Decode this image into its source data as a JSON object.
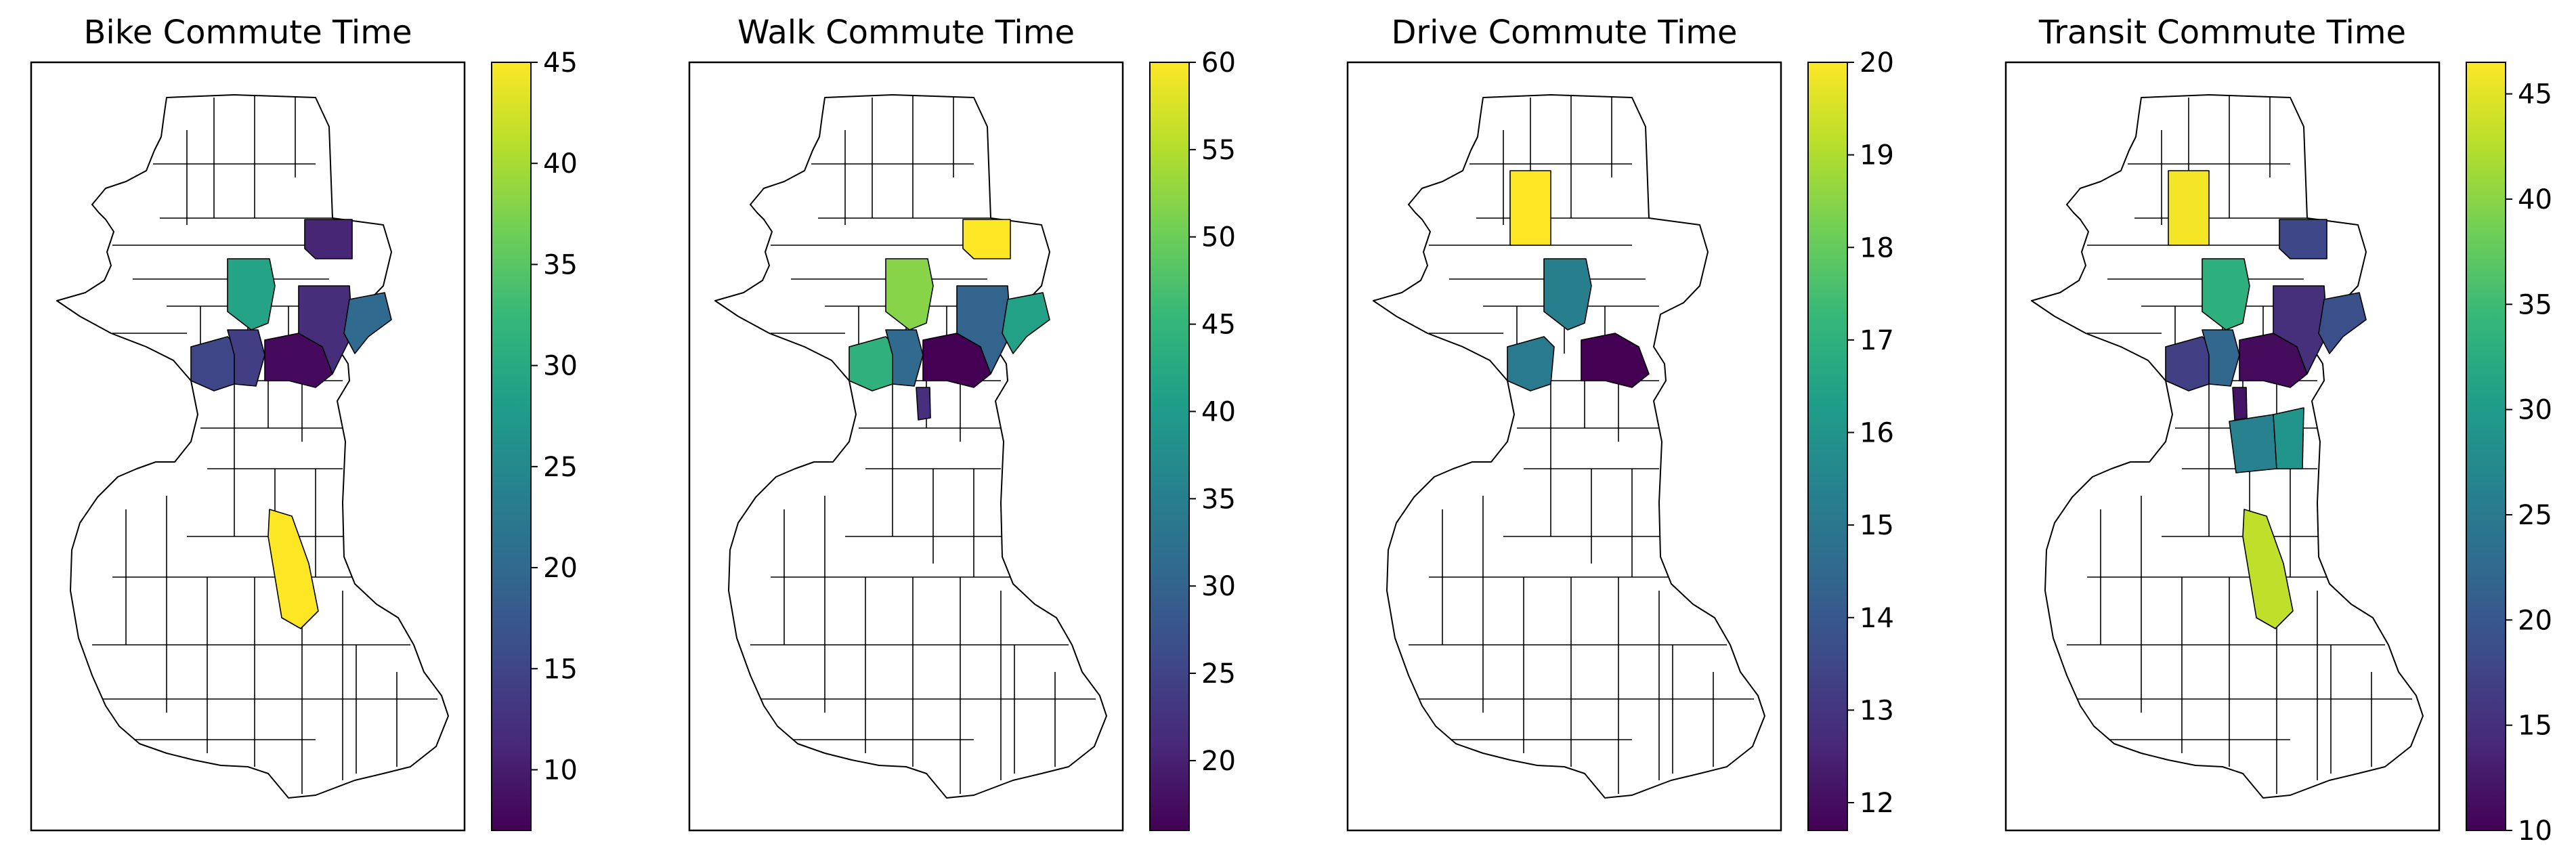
{
  "panels": [
    {
      "title": "Bike Commute Time",
      "colorbar": {
        "min": 7.0,
        "max": 45.0,
        "ticks": [
          "10",
          "15",
          "20",
          "25",
          "30",
          "35",
          "40",
          "45"
        ],
        "tick_values": [
          10,
          15,
          20,
          25,
          30,
          35,
          40,
          45
        ]
      }
    },
    {
      "title": "Walk Commute Time",
      "colorbar": {
        "min": 16.0,
        "max": 60.0,
        "ticks": [
          "20",
          "25",
          "30",
          "35",
          "40",
          "45",
          "50",
          "55",
          "60"
        ],
        "tick_values": [
          20,
          25,
          30,
          35,
          40,
          45,
          50,
          55,
          60
        ]
      }
    },
    {
      "title": "Drive Commute Time",
      "colorbar": {
        "min": 11.7,
        "max": 20.0,
        "ticks": [
          "12",
          "13",
          "14",
          "15",
          "16",
          "17",
          "18",
          "19",
          "20"
        ],
        "tick_values": [
          12,
          13,
          14,
          15,
          16,
          17,
          18,
          19,
          20
        ]
      }
    },
    {
      "title": "Transit Commute Time",
      "colorbar": {
        "min": 10.0,
        "max": 46.5,
        "ticks": [
          "10",
          "15",
          "20",
          "25",
          "30",
          "35",
          "40",
          "45"
        ],
        "tick_values": [
          10,
          15,
          20,
          25,
          30,
          35,
          40,
          45
        ]
      }
    }
  ],
  "chart_data": {
    "type": "choropleth",
    "colormap": "viridis",
    "colormap_stops": [
      "#440154",
      "#482878",
      "#3e4989",
      "#31688e",
      "#26828e",
      "#1f9e89",
      "#35b779",
      "#6ece58",
      "#b5de2b",
      "#fde725"
    ],
    "neighborhood_fill": "#ffffff",
    "maps": [
      {
        "title": "Bike Commute Time",
        "values": [
          {
            "id": "north-central",
            "value": 29
          },
          {
            "id": "northeast-top",
            "value": 11
          },
          {
            "id": "west-central",
            "value": 15
          },
          {
            "id": "central-left",
            "value": 14
          },
          {
            "id": "core",
            "value": 8
          },
          {
            "id": "east-center",
            "value": 12
          },
          {
            "id": "east",
            "value": 20
          },
          {
            "id": "south-central",
            "value": 45
          }
        ]
      },
      {
        "title": "Walk Commute Time",
        "values": [
          {
            "id": "north-central",
            "value": 52
          },
          {
            "id": "northeast-top",
            "value": 60
          },
          {
            "id": "west-central",
            "value": 44
          },
          {
            "id": "central-left",
            "value": 31
          },
          {
            "id": "core",
            "value": 16
          },
          {
            "id": "east-center",
            "value": 30
          },
          {
            "id": "east",
            "value": 41
          },
          {
            "id": "small-south",
            "value": 22
          }
        ]
      },
      {
        "title": "Drive Commute Time",
        "values": [
          {
            "id": "north-left",
            "value": 20
          },
          {
            "id": "north-central",
            "value": 15.3
          },
          {
            "id": "west-central",
            "value": 15.1
          },
          {
            "id": "core",
            "value": 11.7
          }
        ]
      },
      {
        "title": "Transit Commute Time",
        "values": [
          {
            "id": "north-left",
            "value": 46
          },
          {
            "id": "north-central",
            "value": 33
          },
          {
            "id": "northeast-top",
            "value": 18
          },
          {
            "id": "west-central",
            "value": 17
          },
          {
            "id": "central-left",
            "value": 22
          },
          {
            "id": "core",
            "value": 11
          },
          {
            "id": "east-center",
            "value": 15
          },
          {
            "id": "east",
            "value": 19
          },
          {
            "id": "small-south",
            "value": 12
          },
          {
            "id": "south-mid",
            "value": 26
          },
          {
            "id": "south-mid-2",
            "value": 29
          },
          {
            "id": "south-central",
            "value": 43
          }
        ]
      }
    ]
  }
}
